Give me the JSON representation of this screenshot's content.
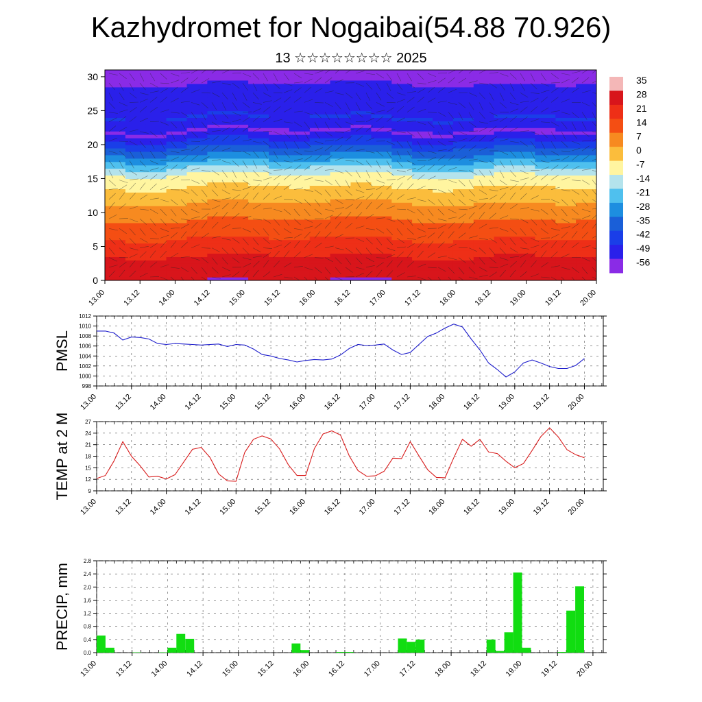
{
  "header": {
    "title": "Kazhydromet for Nogaibai(54.88 70.926)",
    "subtitle": "13 ☆☆☆☆☆☆☆☆ 2025"
  },
  "colors": {
    "pmsl": "#1c1ccc",
    "temp": "#d81c1c",
    "precip": "#11dd11",
    "grid": "#555555"
  },
  "chart_data": [
    {
      "type": "heatmap",
      "name": "cross-section",
      "title": "",
      "xlabel": "",
      "ylabel": "",
      "ylim": [
        0,
        31
      ],
      "y_ticks": [
        "0",
        "5",
        "10",
        "15",
        "20",
        "25",
        "30"
      ],
      "x_ticks": [
        "13.00",
        "13.12",
        "14.00",
        "14.12",
        "15.00",
        "15.12",
        "16.00",
        "16.12",
        "17.00",
        "17.12",
        "18.00",
        "18.12",
        "19.00",
        "19.12",
        "20.00"
      ],
      "colorbar_labels": [
        "35",
        "28",
        "21",
        "14",
        "7",
        "0",
        "-7",
        "-14",
        "-21",
        "-28",
        "-35",
        "-42",
        "-49",
        "-56"
      ],
      "colorbar_colors": [
        "#f4b7b7",
        "#d8151b",
        "#ee2f17",
        "#f44e13",
        "#f78a20",
        "#fbbd3c",
        "#fff5a0",
        "#b4e3ec",
        "#4fc0ee",
        "#1d8ee0",
        "#1a5fd8",
        "#1a3ee8",
        "#2a20ea",
        "#8a2be6"
      ],
      "temperature_levels": [
        {
          "height": 0,
          "value": 30
        },
        {
          "height": 3,
          "value": 26
        },
        {
          "height": 6,
          "value": 18
        },
        {
          "height": 10,
          "value": 8
        },
        {
          "height": 14,
          "value": -4
        },
        {
          "height": 16,
          "value": -12
        },
        {
          "height": 18,
          "value": -28
        },
        {
          "height": 20,
          "value": -40
        },
        {
          "height": 22,
          "value": -54
        },
        {
          "height": 24,
          "value": -45
        },
        {
          "height": 27,
          "value": -50
        },
        {
          "height": 31,
          "value": -55
        }
      ]
    },
    {
      "type": "line",
      "name": "pmsl",
      "ylabel": "PMSL",
      "ylim": [
        998,
        1012
      ],
      "y_ticks": [
        "998",
        "1000",
        "1002",
        "1004",
        "1006",
        "1008",
        "1010",
        "1012"
      ],
      "x_ticks": [
        "13.00",
        "13.12",
        "14.00",
        "14.12",
        "15.00",
        "15.12",
        "16.00",
        "16.12",
        "17.00",
        "17.12",
        "18.00",
        "18.12",
        "19.00",
        "19.12",
        "20.00"
      ],
      "x": [
        0,
        3,
        6,
        9,
        12,
        15,
        18,
        21,
        24,
        27,
        30,
        33,
        36,
        39,
        42,
        45,
        48,
        51,
        54,
        57,
        60,
        63,
        66,
        69,
        72,
        75,
        78,
        81,
        84,
        87,
        90,
        93,
        96,
        99,
        102,
        105,
        108,
        111,
        114,
        117,
        120,
        123,
        126,
        129,
        132,
        135,
        138,
        141,
        144,
        147,
        150,
        153,
        156,
        159,
        162,
        165,
        168
      ],
      "values": [
        1009.0,
        1009.0,
        1008.6,
        1007.2,
        1007.8,
        1007.7,
        1007.4,
        1006.5,
        1006.3,
        1006.5,
        1006.4,
        1006.3,
        1006.2,
        1006.3,
        1006.4,
        1005.9,
        1006.3,
        1006.2,
        1005.4,
        1004.3,
        1004.0,
        1003.5,
        1003.2,
        1002.8,
        1003.1,
        1003.3,
        1003.2,
        1003.4,
        1004.2,
        1005.5,
        1006.3,
        1006.1,
        1006.2,
        1006.4,
        1005.2,
        1004.3,
        1004.7,
        1006.3,
        1007.9,
        1008.6,
        1009.6,
        1010.4,
        1009.8,
        1007.4,
        1005.2,
        1002.6,
        1001.3,
        999.8,
        1000.8,
        1002.6,
        1003.2,
        1002.6,
        1001.9,
        1001.5,
        1001.5,
        1002.1,
        1003.5
      ]
    },
    {
      "type": "line",
      "name": "temp",
      "ylabel": "TEMP at 2 M",
      "ylim": [
        9,
        27
      ],
      "y_ticks": [
        "9",
        "12",
        "15",
        "18",
        "21",
        "24",
        "27"
      ],
      "x_ticks": [
        "13.00",
        "13.12",
        "14.00",
        "14.12",
        "15.00",
        "15.12",
        "16.00",
        "16.12",
        "17.00",
        "17.12",
        "18.00",
        "18.12",
        "19.00",
        "19.12",
        "20.00"
      ],
      "x": [
        0,
        3,
        6,
        9,
        12,
        15,
        18,
        21,
        24,
        27,
        30,
        33,
        36,
        39,
        42,
        45,
        48,
        51,
        54,
        57,
        60,
        63,
        66,
        69,
        72,
        75,
        78,
        81,
        84,
        87,
        90,
        93,
        96,
        99,
        102,
        105,
        108,
        111,
        114,
        117,
        120,
        123,
        126,
        129,
        132,
        135,
        138,
        141,
        144,
        147,
        150,
        153,
        156,
        159,
        162,
        165,
        168
      ],
      "values": [
        12.2,
        13.0,
        16.8,
        21.8,
        18.0,
        15.5,
        12.6,
        12.8,
        12.1,
        13.2,
        16.5,
        19.8,
        20.3,
        17.7,
        13.4,
        11.6,
        11.5,
        19.0,
        22.4,
        23.3,
        22.5,
        19.9,
        15.8,
        13.0,
        13.0,
        20.0,
        23.8,
        24.6,
        23.5,
        18.1,
        14.3,
        12.8,
        12.9,
        14.1,
        17.5,
        17.4,
        21.8,
        18.1,
        14.5,
        12.5,
        12.4,
        17.6,
        22.4,
        20.6,
        22.4,
        19.1,
        18.7,
        16.7,
        15.0,
        16.1,
        19.5,
        23.1,
        25.4,
        23.0,
        19.7,
        18.4,
        17.6
      ]
    },
    {
      "type": "bar",
      "name": "precip",
      "ylabel": "PRECIP, mm",
      "ylim": [
        0,
        2.8
      ],
      "y_ticks": [
        "0.0",
        "0.4",
        "0.8",
        "1.2",
        "1.6",
        "2.0",
        "2.4",
        "2.8"
      ],
      "x_ticks": [
        "13.00",
        "13.12",
        "14.00",
        "14.12",
        "15.00",
        "15.12",
        "16.00",
        "16.12",
        "17.00",
        "17.12",
        "18.00",
        "18.12",
        "19.00",
        "19.12",
        "20.00"
      ],
      "x": [
        3,
        6,
        9,
        12,
        15,
        18,
        21,
        24,
        27,
        30,
        33,
        36,
        39,
        42,
        45,
        48,
        51,
        54,
        57,
        60,
        63,
        66,
        69,
        72,
        75,
        78,
        81,
        84,
        87,
        90,
        93,
        96,
        99,
        102,
        105,
        108,
        111,
        114,
        117,
        120,
        123,
        126,
        129,
        132,
        135,
        138,
        141,
        144,
        147,
        150,
        153,
        156,
        159,
        162,
        165,
        168
      ],
      "values": [
        0.52,
        0.15,
        0,
        0,
        0.01,
        0,
        0,
        0.01,
        0.15,
        0.57,
        0.42,
        0,
        0,
        0,
        0,
        0,
        0,
        0,
        0,
        0,
        0,
        0,
        0.28,
        0.08,
        0,
        0,
        0,
        0.02,
        0.02,
        0,
        0,
        0,
        0,
        0,
        0.43,
        0.33,
        0.4,
        0,
        0,
        0,
        0,
        0,
        0,
        0,
        0.4,
        0.05,
        0.62,
        2.44,
        0.15,
        0,
        0,
        0,
        0.02,
        1.28,
        2.02,
        0
      ]
    }
  ]
}
